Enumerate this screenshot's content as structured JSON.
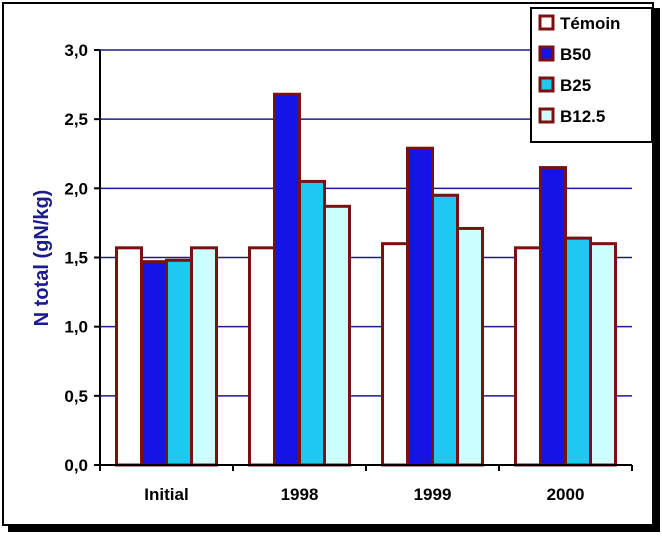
{
  "chart_data": {
    "type": "bar",
    "title": "",
    "xlabel": "",
    "ylabel": "N total (gN/kg)",
    "categories": [
      "Initial",
      "1998",
      "1999",
      "2000"
    ],
    "ylim": [
      0,
      3.0
    ],
    "yticks": [
      "0,0",
      "0,5",
      "1,0",
      "1,5",
      "2,0",
      "2,5",
      "3,0"
    ],
    "grid": true,
    "legend_position": "top-right",
    "bar_border_color": "#7a1010",
    "series": [
      {
        "name": "Témoin",
        "color": "#ffffff",
        "values": [
          1.57,
          1.57,
          1.6,
          1.57
        ]
      },
      {
        "name": "B50",
        "color": "#1414e6",
        "values": [
          1.47,
          2.68,
          2.29,
          2.15
        ]
      },
      {
        "name": "B25",
        "color": "#1ec8f0",
        "values": [
          1.48,
          2.05,
          1.95,
          1.64
        ]
      },
      {
        "name": "B12.5",
        "color": "#ccffff",
        "values": [
          1.57,
          1.87,
          1.71,
          1.6
        ]
      }
    ]
  }
}
